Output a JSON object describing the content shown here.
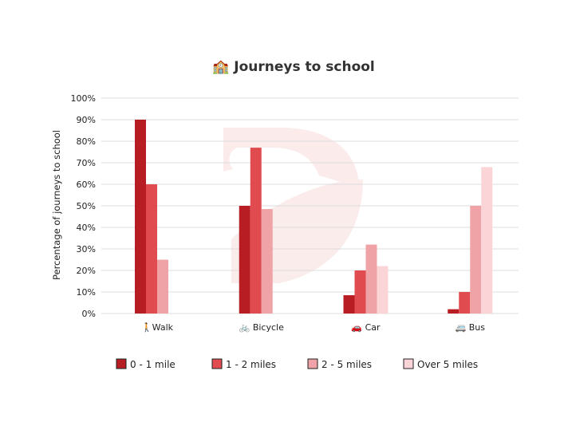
{
  "chart_data": {
    "type": "bar",
    "title": "🏫 Journeys to school",
    "ylabel": "Percentage of journeys to school",
    "xlabel": "",
    "categories": [
      "🚶Walk",
      "🚲 Bicycle",
      "🚗 Car",
      "🚐 Bus"
    ],
    "ylim": [
      0,
      100
    ],
    "yticks": [
      0,
      10,
      20,
      30,
      40,
      50,
      60,
      70,
      80,
      90,
      100
    ],
    "ytick_suffix": "%",
    "grid": true,
    "legend_position": "bottom",
    "series": [
      {
        "name": "0 - 1 mile",
        "color": "#b81d24",
        "values": [
          90,
          50,
          8.5,
          2
        ]
      },
      {
        "name": "1 - 2 miles",
        "color": "#e04b50",
        "values": [
          60,
          77,
          20,
          10
        ]
      },
      {
        "name": "2 - 5 miles",
        "color": "#f0a3a6",
        "values": [
          25,
          48.5,
          32,
          50
        ]
      },
      {
        "name": "Over 5 miles",
        "color": "#fad4d6",
        "values": [
          0,
          0,
          22,
          68
        ]
      }
    ]
  }
}
